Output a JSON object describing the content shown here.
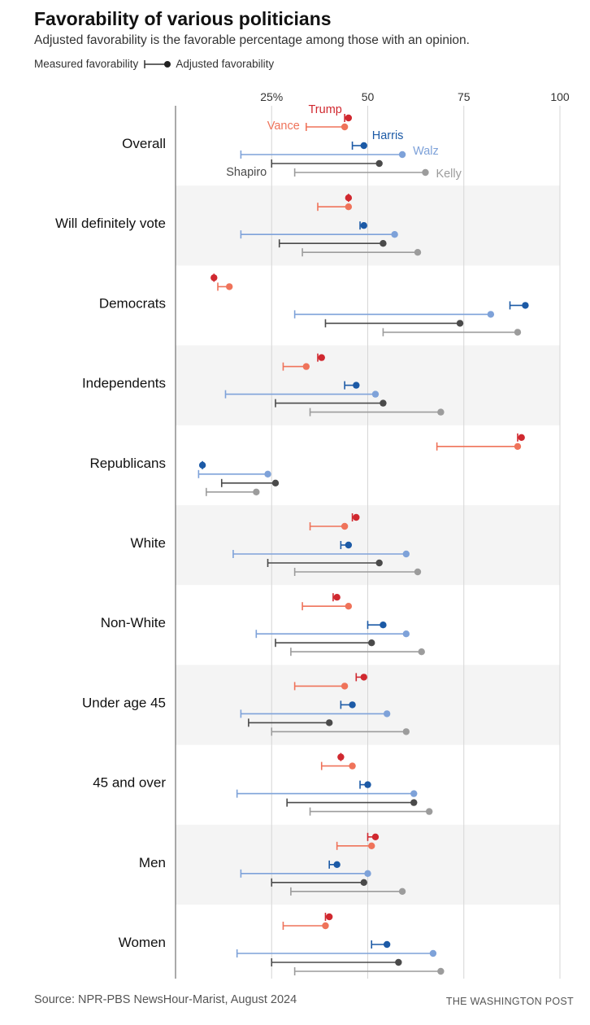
{
  "title": "Favorability of various politicians",
  "subtitle": "Adjusted favorability is the favorable percentage among those with an opinion.",
  "legend": {
    "measured": "Measured favorability",
    "adjusted": "Adjusted favorability"
  },
  "source": "Source: NPR-PBS NewsHour-Marist, August 2024",
  "credit": "THE WASHINGTON POST",
  "chart_data": {
    "type": "dumbbell",
    "x_ticks": [
      {
        "value": 25,
        "label": "25%"
      },
      {
        "value": 50,
        "label": "50"
      },
      {
        "value": 75,
        "label": "75"
      },
      {
        "value": 100,
        "label": "100"
      }
    ],
    "xlim": [
      0,
      100
    ],
    "grid": true,
    "series": [
      {
        "name": "Trump",
        "color": "#d0282f"
      },
      {
        "name": "Vance",
        "color": "#ef735a"
      },
      {
        "name": "Harris",
        "color": "#1c5aa6"
      },
      {
        "name": "Walz",
        "color": "#7ea2d9"
      },
      {
        "name": "Shapiro",
        "color": "#4a4a4a"
      },
      {
        "name": "Kelly",
        "color": "#9c9c9c"
      }
    ],
    "groups": [
      {
        "name": "Overall",
        "values": [
          [
            44,
            45
          ],
          [
            34,
            44
          ],
          [
            46,
            49
          ],
          [
            17,
            59
          ],
          [
            25,
            53
          ],
          [
            31,
            65
          ]
        ]
      },
      {
        "name": "Will definitely vote",
        "values": [
          [
            45,
            45
          ],
          [
            37,
            45
          ],
          [
            48,
            49
          ],
          [
            17,
            57
          ],
          [
            27,
            54
          ],
          [
            33,
            63
          ]
        ]
      },
      {
        "name": "Democrats",
        "values": [
          [
            10,
            10
          ],
          [
            11,
            14
          ],
          [
            87,
            91
          ],
          [
            31,
            82
          ],
          [
            39,
            74
          ],
          [
            54,
            89
          ]
        ]
      },
      {
        "name": "Independents",
        "values": [
          [
            37,
            38
          ],
          [
            28,
            34
          ],
          [
            44,
            47
          ],
          [
            13,
            52
          ],
          [
            26,
            54
          ],
          [
            35,
            69
          ]
        ]
      },
      {
        "name": "Republicans",
        "values": [
          [
            89,
            90
          ],
          [
            68,
            89
          ],
          [
            7,
            7
          ],
          [
            6,
            24
          ],
          [
            12,
            26
          ],
          [
            8,
            21
          ]
        ]
      },
      {
        "name": "White",
        "values": [
          [
            46,
            47
          ],
          [
            35,
            44
          ],
          [
            43,
            45
          ],
          [
            15,
            60
          ],
          [
            24,
            53
          ],
          [
            31,
            63
          ]
        ]
      },
      {
        "name": "Non-White",
        "values": [
          [
            41,
            42
          ],
          [
            33,
            45
          ],
          [
            50,
            54
          ],
          [
            21,
            60
          ],
          [
            26,
            51
          ],
          [
            30,
            64
          ]
        ]
      },
      {
        "name": "Under age 45",
        "values": [
          [
            47,
            49
          ],
          [
            31,
            44
          ],
          [
            43,
            46
          ],
          [
            17,
            55
          ],
          [
            19,
            40
          ],
          [
            25,
            60
          ]
        ]
      },
      {
        "name": "45 and over",
        "values": [
          [
            43,
            43
          ],
          [
            38,
            46
          ],
          [
            48,
            50
          ],
          [
            16,
            62
          ],
          [
            29,
            62
          ],
          [
            35,
            66
          ]
        ]
      },
      {
        "name": "Men",
        "values": [
          [
            50,
            52
          ],
          [
            42,
            51
          ],
          [
            40,
            42
          ],
          [
            17,
            50
          ],
          [
            25,
            49
          ],
          [
            30,
            59
          ]
        ]
      },
      {
        "name": "Women",
        "values": [
          [
            39,
            40
          ],
          [
            28,
            39
          ],
          [
            51,
            55
          ],
          [
            16,
            67
          ],
          [
            25,
            58
          ],
          [
            31,
            69
          ]
        ]
      }
    ]
  }
}
